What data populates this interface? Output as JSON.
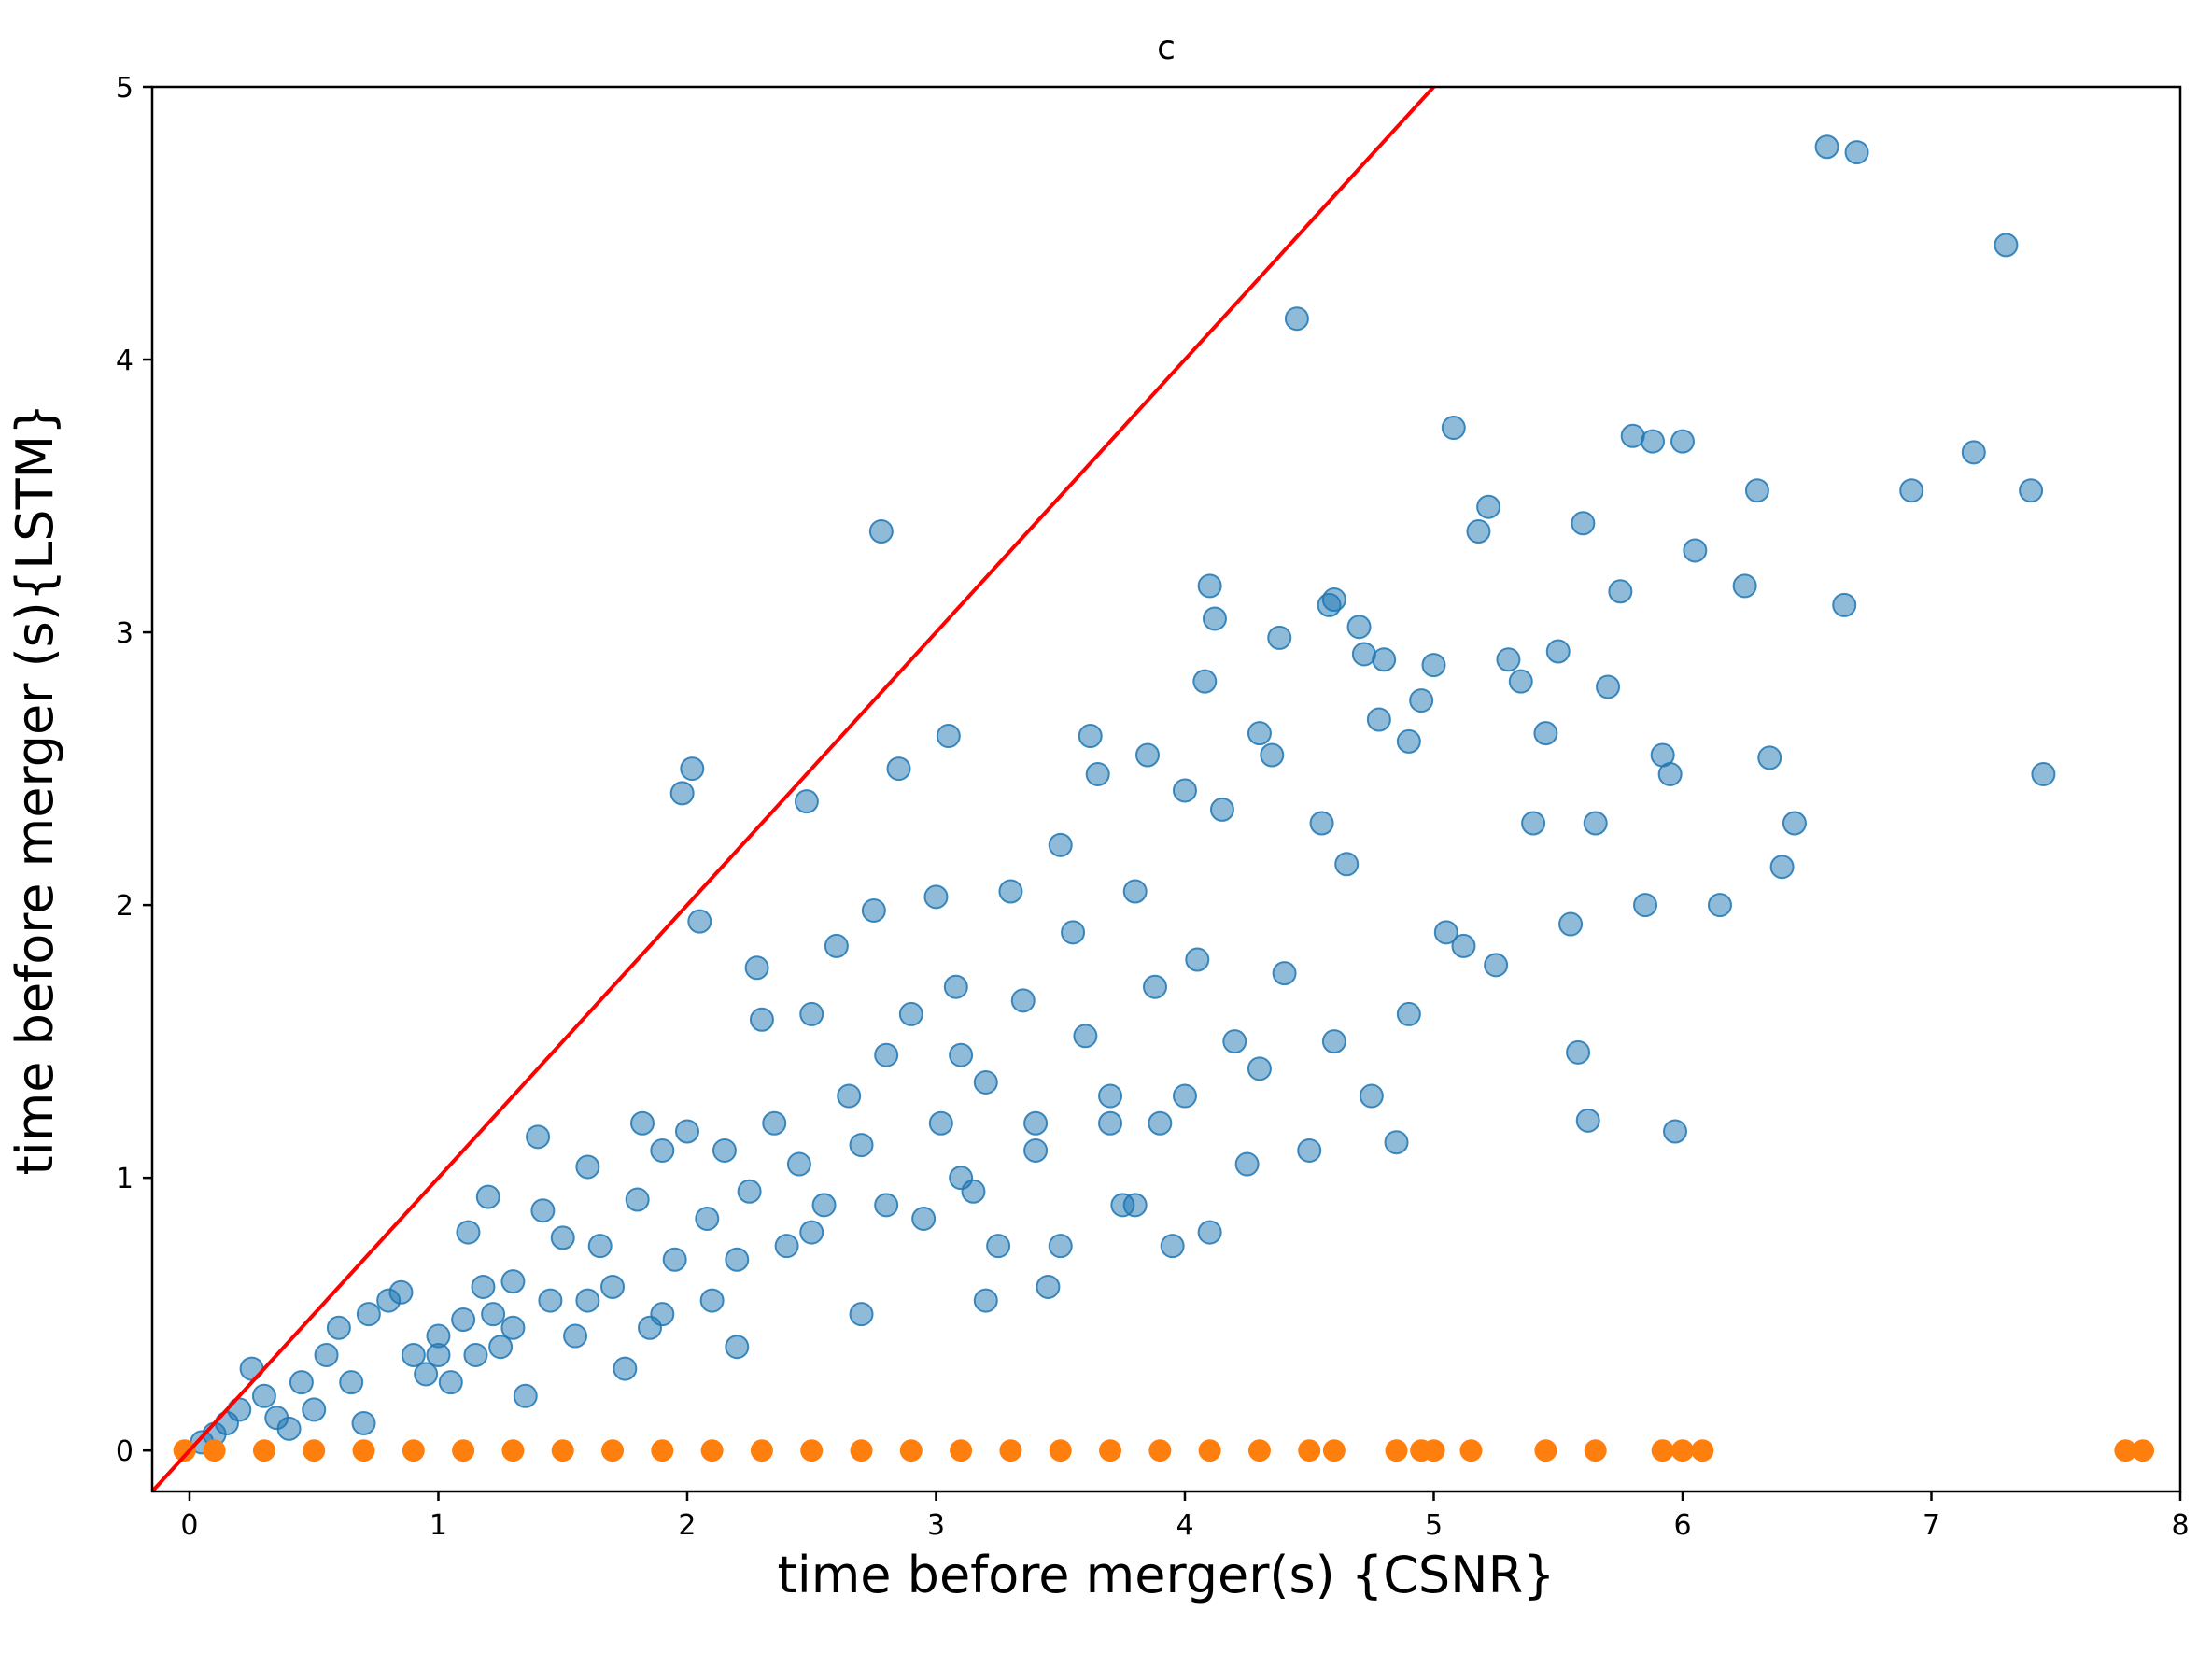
{
  "chart_data": {
    "type": "scatter",
    "title": "c",
    "xlabel": "time before merger(s) {CSNR}",
    "ylabel": "time before merger (s){LSTM}",
    "xlim": [
      -0.15,
      8
    ],
    "ylim": [
      -0.15,
      5
    ],
    "xticks": [
      "0",
      "1",
      "2",
      "3",
      "4",
      "5",
      "6",
      "7",
      "8"
    ],
    "yticks": [
      "0",
      "1",
      "2",
      "3",
      "4",
      "5"
    ],
    "grid": false,
    "legend": "none",
    "reference_line": {
      "color": "#ff0000",
      "slope": 1,
      "intercept": 0
    },
    "series": [
      {
        "color": "#1f77b4",
        "alpha": 0.5,
        "points": [
          [
            0.05,
            0.03
          ],
          [
            0.1,
            0.06
          ],
          [
            0.15,
            0.1
          ],
          [
            0.2,
            0.15
          ],
          [
            0.25,
            0.3
          ],
          [
            0.3,
            0.2
          ],
          [
            0.35,
            0.12
          ],
          [
            0.4,
            0.08
          ],
          [
            0.45,
            0.25
          ],
          [
            0.5,
            0.15
          ],
          [
            0.55,
            0.35
          ],
          [
            0.6,
            0.45
          ],
          [
            0.65,
            0.25
          ],
          [
            0.7,
            0.1
          ],
          [
            0.72,
            0.5
          ],
          [
            0.8,
            0.55
          ],
          [
            0.85,
            0.58
          ],
          [
            0.9,
            0.35
          ],
          [
            0.95,
            0.28
          ],
          [
            1.0,
            0.42
          ],
          [
            1.05,
            0.25
          ],
          [
            1.1,
            0.48
          ],
          [
            1.12,
            0.8
          ],
          [
            1.15,
            0.35
          ],
          [
            1.18,
            0.6
          ],
          [
            1.2,
            0.93
          ],
          [
            1.22,
            0.5
          ],
          [
            1.25,
            0.38
          ],
          [
            1.3,
            0.62
          ],
          [
            1.35,
            0.2
          ],
          [
            1.4,
            1.15
          ],
          [
            1.42,
            0.88
          ],
          [
            1.45,
            0.55
          ],
          [
            1.5,
            0.78
          ],
          [
            1.55,
            0.42
          ],
          [
            1.6,
            1.04
          ],
          [
            1.65,
            0.75
          ],
          [
            1.7,
            0.6
          ],
          [
            1.75,
            0.3
          ],
          [
            1.8,
            0.92
          ],
          [
            1.82,
            1.2
          ],
          [
            1.85,
            0.45
          ],
          [
            1.9,
            1.1
          ],
          [
            1.95,
            0.7
          ],
          [
            1.98,
            2.41
          ],
          [
            2.0,
            1.17
          ],
          [
            2.02,
            2.5
          ],
          [
            2.05,
            1.94
          ],
          [
            2.08,
            0.85
          ],
          [
            2.1,
            0.55
          ],
          [
            2.15,
            1.1
          ],
          [
            2.2,
            0.38
          ],
          [
            2.25,
            0.95
          ],
          [
            2.28,
            1.77
          ],
          [
            2.3,
            1.58
          ],
          [
            2.35,
            1.2
          ],
          [
            2.4,
            0.75
          ],
          [
            2.45,
            1.05
          ],
          [
            2.48,
            2.38
          ],
          [
            2.5,
            1.6
          ],
          [
            2.55,
            0.9
          ],
          [
            2.6,
            1.85
          ],
          [
            2.65,
            1.3
          ],
          [
            2.7,
            1.12
          ],
          [
            2.75,
            1.98
          ],
          [
            2.78,
            3.37
          ],
          [
            2.8,
            1.45
          ],
          [
            2.85,
            2.5
          ],
          [
            2.9,
            1.6
          ],
          [
            2.95,
            0.85
          ],
          [
            3.0,
            2.03
          ],
          [
            3.02,
            1.2
          ],
          [
            3.05,
            2.62
          ],
          [
            3.08,
            1.7
          ],
          [
            3.1,
            1.45
          ],
          [
            3.15,
            0.95
          ],
          [
            3.2,
            1.35
          ],
          [
            3.25,
            0.75
          ],
          [
            3.3,
            2.05
          ],
          [
            3.35,
            1.65
          ],
          [
            3.4,
            1.2
          ],
          [
            3.45,
            0.6
          ],
          [
            3.5,
            2.22
          ],
          [
            3.55,
            1.9
          ],
          [
            3.6,
            1.52
          ],
          [
            3.62,
            2.62
          ],
          [
            3.65,
            2.48
          ],
          [
            3.7,
            1.3
          ],
          [
            3.75,
            0.9
          ],
          [
            3.8,
            2.05
          ],
          [
            3.85,
            2.55
          ],
          [
            3.88,
            1.7
          ],
          [
            3.9,
            1.2
          ],
          [
            3.95,
            0.75
          ],
          [
            4.0,
            2.42
          ],
          [
            4.05,
            1.8
          ],
          [
            4.08,
            2.82
          ],
          [
            4.1,
            3.17
          ],
          [
            4.12,
            3.05
          ],
          [
            4.15,
            2.35
          ],
          [
            4.2,
            1.5
          ],
          [
            4.25,
            1.05
          ],
          [
            4.3,
            2.63
          ],
          [
            4.35,
            2.55
          ],
          [
            4.38,
            2.98
          ],
          [
            4.4,
            1.75
          ],
          [
            4.45,
            4.15
          ],
          [
            4.5,
            1.1
          ],
          [
            4.55,
            2.3
          ],
          [
            4.58,
            3.1
          ],
          [
            4.6,
            3.12
          ],
          [
            4.65,
            2.15
          ],
          [
            4.7,
            3.02
          ],
          [
            4.72,
            2.92
          ],
          [
            4.75,
            1.3
          ],
          [
            4.78,
            2.68
          ],
          [
            4.8,
            2.9
          ],
          [
            4.85,
            1.13
          ],
          [
            4.9,
            2.6
          ],
          [
            4.95,
            2.75
          ],
          [
            5.0,
            2.88
          ],
          [
            5.05,
            1.9
          ],
          [
            5.08,
            3.75
          ],
          [
            5.12,
            1.85
          ],
          [
            5.18,
            3.37
          ],
          [
            5.22,
            3.46
          ],
          [
            5.25,
            1.78
          ],
          [
            5.3,
            2.9
          ],
          [
            5.35,
            2.82
          ],
          [
            5.4,
            2.3
          ],
          [
            5.45,
            2.63
          ],
          [
            5.5,
            2.93
          ],
          [
            5.55,
            1.93
          ],
          [
            5.58,
            1.46
          ],
          [
            5.6,
            3.4
          ],
          [
            5.62,
            1.21
          ],
          [
            5.65,
            2.3
          ],
          [
            5.7,
            2.8
          ],
          [
            5.75,
            3.15
          ],
          [
            5.8,
            3.72
          ],
          [
            5.85,
            2.0
          ],
          [
            5.88,
            3.7
          ],
          [
            5.92,
            2.55
          ],
          [
            5.95,
            2.48
          ],
          [
            5.97,
            1.17
          ],
          [
            6.0,
            3.7
          ],
          [
            6.05,
            3.3
          ],
          [
            6.15,
            2.0
          ],
          [
            6.25,
            3.17
          ],
          [
            6.3,
            3.52
          ],
          [
            6.35,
            2.54
          ],
          [
            6.4,
            2.14
          ],
          [
            6.45,
            2.3
          ],
          [
            6.58,
            4.78
          ],
          [
            6.65,
            3.1
          ],
          [
            6.7,
            4.76
          ],
          [
            6.92,
            3.52
          ],
          [
            7.17,
            3.66
          ],
          [
            7.3,
            4.42
          ],
          [
            7.4,
            3.52
          ],
          [
            7.45,
            2.48
          ],
          [
            1.0,
            0.35
          ],
          [
            1.3,
            0.45
          ],
          [
            1.6,
            0.55
          ],
          [
            1.9,
            0.5
          ],
          [
            2.2,
            0.7
          ],
          [
            2.5,
            0.8
          ],
          [
            2.8,
            0.9
          ],
          [
            3.1,
            1.0
          ],
          [
            3.4,
            1.1
          ],
          [
            3.7,
            1.2
          ],
          [
            4.0,
            1.3
          ],
          [
            4.3,
            1.4
          ],
          [
            4.6,
            1.5
          ],
          [
            4.9,
            1.6
          ],
          [
            3.2,
            0.55
          ],
          [
            3.5,
            0.75
          ],
          [
            3.8,
            0.9
          ],
          [
            4.1,
            0.8
          ],
          [
            2.7,
            0.5
          ]
        ]
      },
      {
        "color": "#ff7f0e",
        "alpha": 1,
        "points": [
          [
            -0.02,
            0
          ],
          [
            0.1,
            0
          ],
          [
            0.3,
            0
          ],
          [
            0.5,
            0
          ],
          [
            0.7,
            0
          ],
          [
            0.9,
            0
          ],
          [
            1.1,
            0
          ],
          [
            1.3,
            0
          ],
          [
            1.5,
            0
          ],
          [
            1.7,
            0
          ],
          [
            1.9,
            0
          ],
          [
            2.1,
            0
          ],
          [
            2.3,
            0
          ],
          [
            2.5,
            0
          ],
          [
            2.7,
            0
          ],
          [
            2.9,
            0
          ],
          [
            3.1,
            0
          ],
          [
            3.3,
            0
          ],
          [
            3.5,
            0
          ],
          [
            3.7,
            0
          ],
          [
            3.9,
            0
          ],
          [
            4.1,
            0
          ],
          [
            4.3,
            0
          ],
          [
            4.5,
            0
          ],
          [
            4.6,
            0
          ],
          [
            4.85,
            0
          ],
          [
            4.95,
            0
          ],
          [
            5.0,
            0
          ],
          [
            5.15,
            0
          ],
          [
            5.45,
            0
          ],
          [
            5.65,
            0
          ],
          [
            5.92,
            0
          ],
          [
            6.0,
            0
          ],
          [
            6.08,
            0
          ],
          [
            7.78,
            0
          ],
          [
            7.85,
            0
          ]
        ]
      }
    ]
  }
}
